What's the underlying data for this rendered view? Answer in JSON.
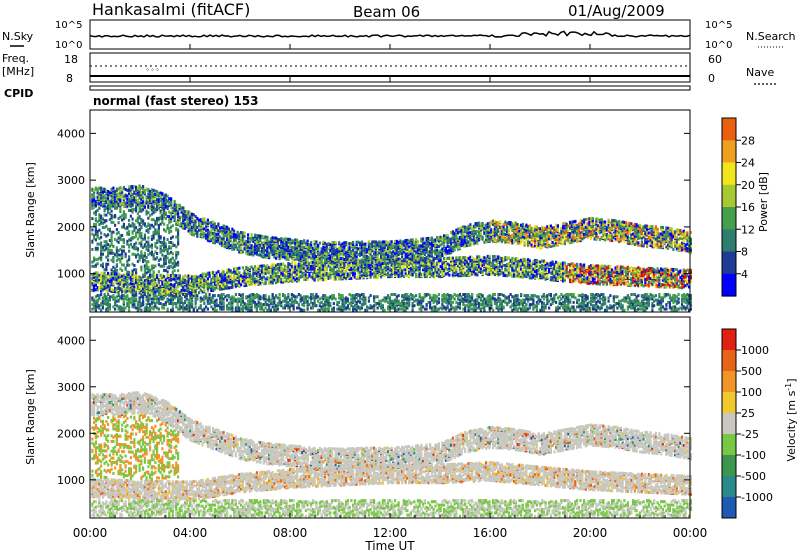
{
  "header": {
    "station": "Hankasalmi (fitACF)",
    "beam": "Beam 06",
    "date": "01/Aug/2009"
  },
  "noise_panel": {
    "left_label": "N.Sky",
    "right_label": "N.Search",
    "left_ticks": [
      "10^5",
      "10^0"
    ],
    "right_ticks": [
      "10^5",
      "10^0"
    ]
  },
  "freq_panel": {
    "left_label_line1": "Freq.",
    "left_label_line2": "[MHz]",
    "left_ticks": [
      "18",
      "8"
    ],
    "right_label": "Nave",
    "right_ticks": [
      "60",
      "0"
    ]
  },
  "cpid": {
    "label": "CPID",
    "mode": "normal (fast stereo) 153"
  },
  "power_panel": {
    "ylabel": "Slant Range [km]",
    "yticks": [
      "4000",
      "3000",
      "2000",
      "1000"
    ],
    "colorbar_label": "Power [dB]",
    "colorbar_ticks": [
      "28",
      "24",
      "20",
      "16",
      "12",
      "8",
      "4"
    ],
    "colors": [
      "#0000ff",
      "#1e3c96",
      "#2f7d6e",
      "#44a04a",
      "#a6c832",
      "#f0e61e",
      "#f0a01e",
      "#e86010",
      "#e41a1a",
      "#c80000"
    ]
  },
  "velocity_panel": {
    "ylabel": "Slant Range [km]",
    "yticks": [
      "4000",
      "3000",
      "2000",
      "1000"
    ],
    "colorbar_label": "Velocity [m s^-1]",
    "colorbar_ticks": [
      "1000",
      "500",
      "100",
      "25",
      "-25",
      "-100",
      "-500",
      "-1000"
    ],
    "colors": [
      "#1e5ab4",
      "#2a8a8a",
      "#3c9650",
      "#78c846",
      "#c8c8c0",
      "#f0c832",
      "#f09628",
      "#e86418",
      "#e02010"
    ]
  },
  "time_axis": {
    "xlabel": "Time UT",
    "ticks": [
      "00:00",
      "04:00",
      "08:00",
      "12:00",
      "16:00",
      "20:00",
      "00:00"
    ]
  },
  "chart_data": {
    "type": "heatmap",
    "title": "Hankasalmi (fitACF)",
    "x": {
      "label": "Time UT",
      "range": [
        0,
        24
      ],
      "unit": "hour"
    },
    "y": {
      "label": "Slant Range [km]",
      "range": [
        180,
        4500
      ]
    },
    "power_scattering_bands": [
      {
        "name": "upper",
        "x": [
          0,
          1,
          2,
          3,
          4,
          5,
          6,
          7,
          8,
          9,
          10,
          11,
          12,
          13,
          14,
          15,
          16,
          17,
          18,
          19,
          20,
          21,
          22,
          23,
          24
        ],
        "y": [
          2650,
          2650,
          2700,
          2500,
          2100,
          1900,
          1700,
          1600,
          1550,
          1500,
          1480,
          1500,
          1500,
          1550,
          1600,
          1850,
          1950,
          1900,
          1800,
          1900,
          2000,
          1950,
          1850,
          1800,
          1700
        ]
      },
      {
        "name": "lower",
        "x": [
          0,
          2,
          4,
          6,
          8,
          10,
          12,
          14,
          16,
          18,
          20,
          22,
          24
        ],
        "y": [
          850,
          800,
          780,
          950,
          1050,
          1100,
          1150,
          1150,
          1200,
          1100,
          1000,
          950,
          900
        ]
      }
    ]
  }
}
